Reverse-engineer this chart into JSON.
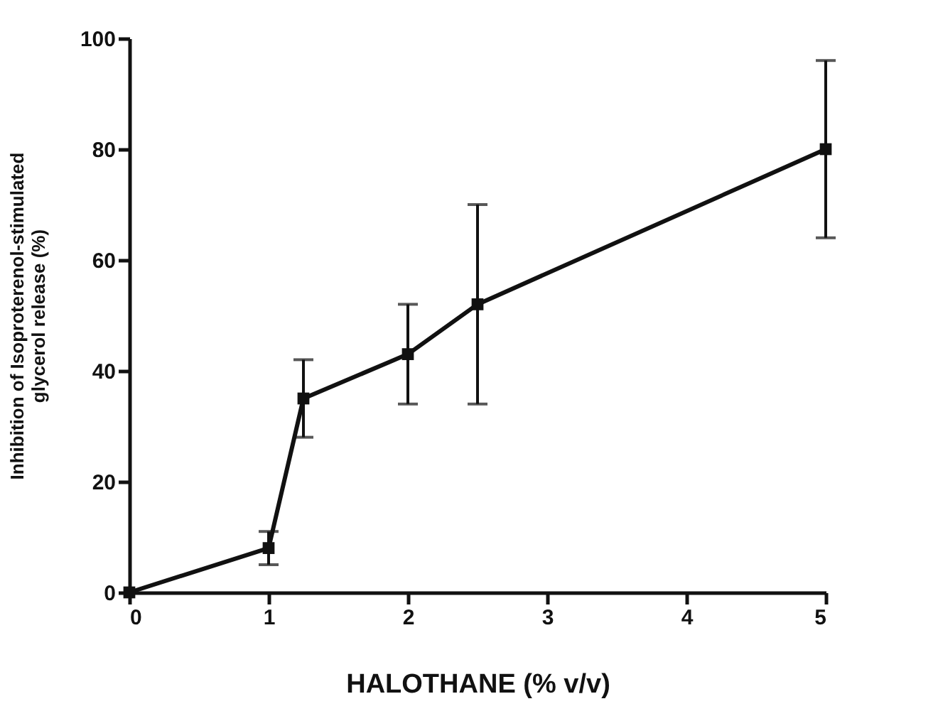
{
  "chart_data": {
    "type": "line",
    "xlabel": "HALOTHANE (% v/v)",
    "ylabel": "Inhibition of Isoproterenol-stimulated\nglycerol release (%)",
    "x": [
      0,
      1,
      1.25,
      2,
      2.5,
      5
    ],
    "series": [
      {
        "color": "#111111",
        "values": [
          0,
          8,
          35,
          43,
          52,
          80
        ],
        "errors": [
          null,
          3,
          7,
          9,
          18,
          16
        ]
      }
    ],
    "xlim": [
      0,
      5
    ],
    "xticks": [
      0,
      1,
      2,
      3,
      4,
      5
    ],
    "ylim": [
      0,
      100
    ],
    "yticks": [
      0,
      20,
      40,
      60,
      80,
      100
    ],
    "marker": "square",
    "line_style": "solid",
    "grid": false
  }
}
